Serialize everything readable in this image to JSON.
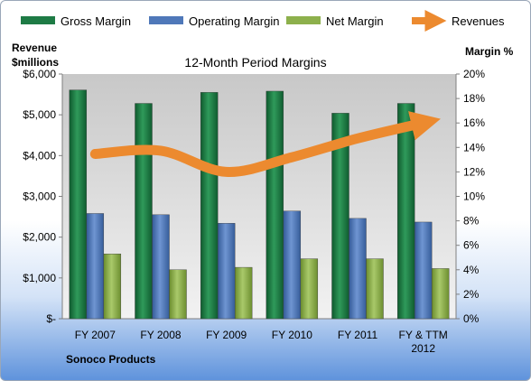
{
  "chart_data": {
    "type": "bar",
    "title": "12-Month Period Margins",
    "company": "Sonoco Products",
    "categories": [
      [
        "FY 2007"
      ],
      [
        "FY 2008"
      ],
      [
        "FY 2009"
      ],
      [
        "FY 2010"
      ],
      [
        "FY 2011"
      ],
      [
        "FY & TTM",
        "2012"
      ]
    ],
    "series": [
      {
        "name": "Gross Margin",
        "type": "bar",
        "axis": "right",
        "color": "#1e7b45",
        "values": [
          18.7,
          17.6,
          18.5,
          18.6,
          16.8,
          17.6
        ]
      },
      {
        "name": "Operating Margin",
        "type": "bar",
        "axis": "right",
        "color": "#4f78b9",
        "values": [
          8.6,
          8.5,
          7.8,
          8.8,
          8.2,
          7.9
        ]
      },
      {
        "name": "Net Margin",
        "type": "bar",
        "axis": "right",
        "color": "#8db04c",
        "values": [
          5.3,
          4.0,
          4.2,
          4.9,
          4.9,
          4.1
        ]
      },
      {
        "name": "Revenues",
        "type": "line",
        "axis": "left",
        "color": "#ec8a2f",
        "values": [
          4040,
          4120,
          3600,
          3960,
          4420,
          4800
        ]
      }
    ],
    "left_axis": {
      "label": [
        "Revenue",
        "$millions"
      ],
      "range": [
        0,
        6000
      ],
      "ticks": [
        "$-",
        "$1,000",
        "$2,000",
        "$3,000",
        "$4,000",
        "$5,000",
        "$6,000"
      ]
    },
    "right_axis": {
      "label": "Margin %",
      "range": [
        0,
        20
      ],
      "ticks": [
        "0%",
        "2%",
        "4%",
        "6%",
        "8%",
        "10%",
        "12%",
        "14%",
        "16%",
        "18%",
        "20%"
      ]
    },
    "legend_position": "top",
    "grid": false
  }
}
